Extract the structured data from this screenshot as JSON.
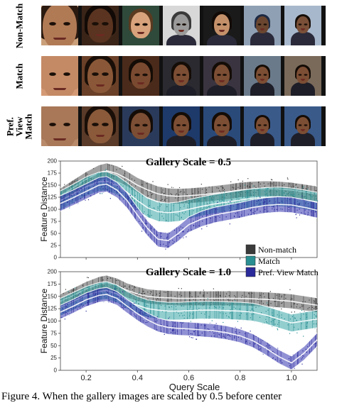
{
  "figure": {
    "rows": [
      {
        "label": "Non-Match",
        "faces": [
          {
            "skin": "#b07a55",
            "bg": "#caa07a",
            "hair": "#2a1a10"
          },
          {
            "skin": "#5a3420",
            "bg": "#3a2418",
            "hair": "#120a06"
          },
          {
            "skin": "#d8a37c",
            "bg": "#2f4a3a",
            "hair": "#5a3a20"
          },
          {
            "skin": "#9a9a9a",
            "bg": "#d8d8d8",
            "hair": "#3a3a3a"
          },
          {
            "skin": "#c4906a",
            "bg": "#1a1a1a",
            "hair": "#120a06"
          },
          {
            "skin": "#6a4630",
            "bg": "#8fa0b4",
            "hair": "#1e2a44"
          },
          {
            "skin": "#7a5038",
            "bg": "#a8b8cc",
            "hair": "#160e08"
          }
        ]
      },
      {
        "label": "Match",
        "faces": [
          {
            "skin": "#c48a66",
            "bg": "#d49a76",
            "hair": "#c48a66"
          },
          {
            "skin": "#8a5838",
            "bg": "#6a4028",
            "hair": "#1a0f08"
          },
          {
            "skin": "#7a4a30",
            "bg": "#4a2a1a",
            "hair": "#140c06"
          },
          {
            "skin": "#7c4e34",
            "bg": "#2a2a30",
            "hair": "#140c06"
          },
          {
            "skin": "#7c4e34",
            "bg": "#3a3440",
            "hair": "#140c06"
          },
          {
            "skin": "#7c4e34",
            "bg": "#6a7a8a",
            "hair": "#140c06"
          },
          {
            "skin": "#7c4e34",
            "bg": "#7a6a5a",
            "hair": "#140c06"
          }
        ]
      },
      {
        "label": "Pref. View Match",
        "faces": [
          {
            "skin": "#a87858",
            "bg": "#b88a6a",
            "hair": "#a87858"
          },
          {
            "skin": "#8a5a3a",
            "bg": "#5a3a28",
            "hair": "#1a0f08"
          },
          {
            "skin": "#7c4e34",
            "bg": "#2a3a5a",
            "hair": "#140c06"
          },
          {
            "skin": "#7c4e34",
            "bg": "#1e3a6a",
            "hair": "#140c06"
          },
          {
            "skin": "#7c4e34",
            "bg": "#2a4a7a",
            "hair": "#140c06"
          },
          {
            "skin": "#7c4e34",
            "bg": "#3a5a8a",
            "hair": "#140c06"
          },
          {
            "skin": "#7c4e34",
            "bg": "#3a5a8a",
            "hair": "#140c06"
          }
        ]
      }
    ],
    "y_axis_label": "Feature Distance",
    "x_axis_label": "Query Scale",
    "legend": [
      {
        "name": "Non-match",
        "color": "#3a3a3a"
      },
      {
        "name": "Match",
        "color": "#2a8f92"
      },
      {
        "name": "Pref. View Match",
        "color": "#2a2a9a"
      }
    ],
    "caption": "Figure 4. When the gallery images are scaled by 0.5 before center"
  },
  "chart_data": [
    {
      "type": "line",
      "title": "Gallery Scale = 0.5",
      "xlabel": "",
      "ylabel": "Feature Distance",
      "xlim": [
        0.1,
        1.1
      ],
      "ylim": [
        0,
        200
      ],
      "xticks": [
        0.2,
        0.4,
        0.6,
        0.8,
        1.0
      ],
      "yticks": [
        0,
        25,
        50,
        75,
        100,
        125,
        150,
        175,
        200
      ],
      "x": [
        0.1,
        0.15,
        0.2,
        0.25,
        0.28,
        0.32,
        0.36,
        0.4,
        0.44,
        0.48,
        0.52,
        0.56,
        0.6,
        0.65,
        0.7,
        0.75,
        0.8,
        0.85,
        0.9,
        0.95,
        1.0,
        1.05,
        1.1
      ],
      "series": [
        {
          "name": "Non-match",
          "values": [
            128,
            145,
            162,
            176,
            180,
            174,
            163,
            150,
            140,
            132,
            128,
            127,
            128,
            130,
            133,
            136,
            140,
            142,
            143,
            142,
            140,
            136,
            132
          ],
          "spread": 16
        },
        {
          "name": "Match",
          "values": [
            118,
            132,
            147,
            157,
            158,
            150,
            135,
            118,
            103,
            95,
            93,
            95,
            100,
            106,
            111,
            115,
            119,
            123,
            125,
            126,
            124,
            120,
            115
          ],
          "spread": 20
        },
        {
          "name": "Pref. View Match",
          "values": [
            112,
            124,
            137,
            150,
            152,
            140,
            118,
            88,
            60,
            38,
            35,
            50,
            68,
            80,
            88,
            93,
            98,
            104,
            108,
            110,
            109,
            104,
            98
          ],
          "spread": 16
        }
      ],
      "legend_position": "bottom-right"
    },
    {
      "type": "line",
      "title": "Gallery Scale = 1.0",
      "xlabel": "Query Scale",
      "ylabel": "Feature Distance",
      "xlim": [
        0.1,
        1.1
      ],
      "ylim": [
        0,
        200
      ],
      "xticks": [
        0.2,
        0.4,
        0.6,
        0.8,
        1.0
      ],
      "yticks": [
        0,
        25,
        50,
        75,
        100,
        125,
        150,
        175,
        200
      ],
      "x": [
        0.1,
        0.15,
        0.2,
        0.25,
        0.28,
        0.32,
        0.36,
        0.4,
        0.44,
        0.48,
        0.52,
        0.56,
        0.6,
        0.65,
        0.7,
        0.75,
        0.8,
        0.85,
        0.9,
        0.95,
        1.0,
        1.05,
        1.1
      ],
      "series": [
        {
          "name": "Non-match",
          "values": [
            140,
            152,
            165,
            175,
            178,
            172,
            162,
            155,
            150,
            148,
            147,
            146,
            146,
            146,
            146,
            146,
            146,
            145,
            144,
            142,
            140,
            136,
            132
          ],
          "spread": 15
        },
        {
          "name": "Match",
          "values": [
            128,
            140,
            152,
            160,
            162,
            155,
            142,
            132,
            125,
            122,
            120,
            120,
            121,
            122,
            122,
            121,
            120,
            118,
            112,
            104,
            96,
            100,
            104
          ],
          "spread": 18
        },
        {
          "name": "Pref. View Match",
          "values": [
            118,
            130,
            143,
            152,
            154,
            146,
            130,
            115,
            102,
            92,
            87,
            85,
            84,
            82,
            80,
            76,
            70,
            60,
            45,
            28,
            15,
            35,
            62
          ],
          "spread": 14
        }
      ],
      "legend_position": "top-right"
    }
  ]
}
